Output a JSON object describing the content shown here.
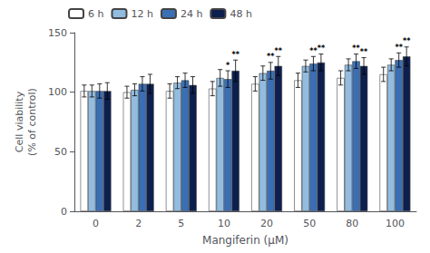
{
  "chart_data": {
    "type": "bar",
    "xlabel": "Mangiferin (μM)",
    "ylabel": "Cell viability\n(% of control)",
    "categories": [
      0,
      2,
      5,
      10,
      20,
      50,
      80,
      100
    ],
    "series": [
      {
        "name": "6 h",
        "color": "#ffffff",
        "values": [
          101,
          100,
          101,
          103,
          107,
          110,
          112,
          115
        ],
        "errors": [
          5.0,
          5.0,
          6.0,
          6.0,
          6.0,
          6.0,
          6.0,
          6.0
        ],
        "significance": [
          null,
          null,
          null,
          null,
          null,
          null,
          null,
          null
        ]
      },
      {
        "name": "12 h",
        "color": "#92bce0",
        "values": [
          101,
          102,
          108,
          112,
          116,
          122,
          123,
          123
        ],
        "errors": [
          5.0,
          5.0,
          5.0,
          7.0,
          6.0,
          5.0,
          5.0,
          5.0
        ],
        "significance": [
          null,
          null,
          null,
          null,
          null,
          null,
          null,
          null
        ]
      },
      {
        "name": "24 h",
        "color": "#3a6fb5",
        "values": [
          101,
          107,
          110,
          111,
          118,
          124,
          126,
          127
        ],
        "errors": [
          6.0,
          6.0,
          6.0,
          7.0,
          7.0,
          6.0,
          6.0,
          6.0
        ],
        "significance": [
          null,
          null,
          null,
          "*",
          "**",
          "**",
          "**",
          "**"
        ]
      },
      {
        "name": "48 h",
        "color": "#0d1f4e",
        "values": [
          101,
          107,
          106,
          118,
          122,
          125,
          122,
          130
        ],
        "errors": [
          7.0,
          8.0,
          7.0,
          9.0,
          8.0,
          7.0,
          7.0,
          8.0
        ],
        "significance": [
          null,
          null,
          null,
          "**",
          "**",
          "**",
          "**",
          "**"
        ]
      }
    ],
    "ylim": [
      0,
      150
    ],
    "yticks": [
      0,
      50,
      100,
      150
    ],
    "grid": false,
    "legend": "upper left"
  }
}
